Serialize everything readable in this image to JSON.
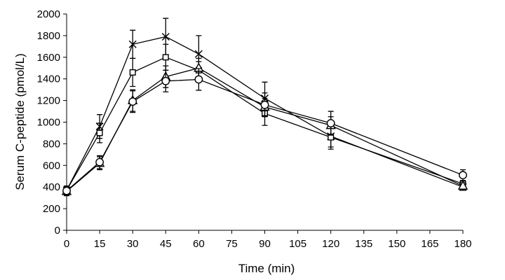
{
  "chart_data": {
    "type": "line",
    "xlabel": "Time (min)",
    "ylabel": "Serum C-peptide (pmol/L)",
    "x": [
      0,
      15,
      30,
      45,
      60,
      90,
      120,
      180
    ],
    "xlim": [
      0,
      180
    ],
    "ylim": [
      0,
      2000
    ],
    "xticks": [
      0,
      15,
      30,
      45,
      60,
      75,
      90,
      105,
      120,
      135,
      150,
      165,
      180
    ],
    "yticks": [
      0,
      200,
      400,
      600,
      800,
      1000,
      1200,
      1400,
      1600,
      1800,
      2000
    ],
    "grid": false,
    "series": [
      {
        "marker": "cross",
        "values": [
          370,
          960,
          1720,
          1790,
          1630,
          1220,
          870,
          400
        ],
        "errors": [
          40,
          110,
          130,
          170,
          170,
          150,
          100,
          30
        ]
      },
      {
        "marker": "square",
        "values": [
          370,
          900,
          1460,
          1600,
          1480,
          1080,
          860,
          430
        ],
        "errors": [
          40,
          90,
          130,
          120,
          80,
          110,
          110,
          30
        ]
      },
      {
        "marker": "triangle",
        "values": [
          360,
          620,
          1200,
          1420,
          1500,
          1140,
          970,
          410
        ],
        "errors": [
          40,
          60,
          100,
          100,
          90,
          80,
          80,
          30
        ]
      },
      {
        "marker": "circle",
        "values": [
          365,
          630,
          1190,
          1380,
          1395,
          1160,
          990,
          510
        ],
        "errors": [
          40,
          60,
          100,
          100,
          100,
          110,
          110,
          50
        ]
      }
    ]
  }
}
